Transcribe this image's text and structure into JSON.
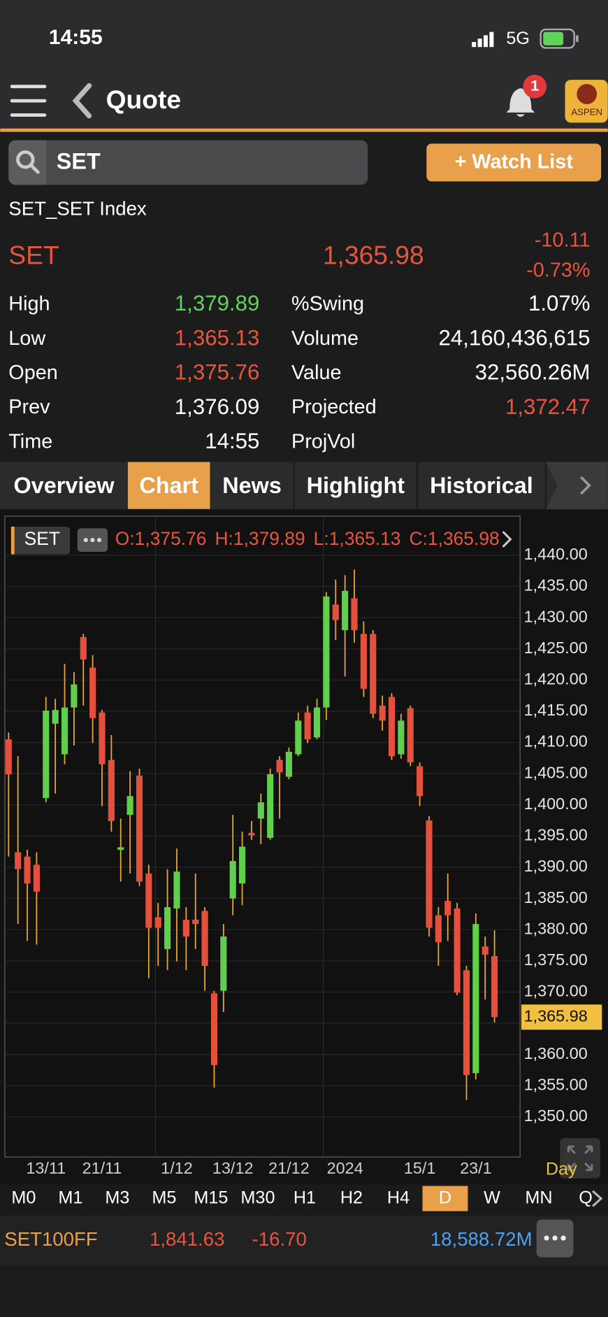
{
  "status_bar": {
    "time": "14:55",
    "network": "5G"
  },
  "header": {
    "title": "Quote",
    "badge": "1",
    "logo": "ASPEN"
  },
  "search": {
    "query": "SET",
    "button": "+ Watch List"
  },
  "quote": {
    "name": "SET_SET Index",
    "symbol": "SET",
    "last": "1,365.98",
    "change": "-10.11",
    "change_pct": "-0.73%",
    "left_fields": [
      {
        "label": "High",
        "value": "1,379.89",
        "color": "#5fd35a"
      },
      {
        "label": "Low",
        "value": "1,365.13",
        "color": "#e8553e"
      },
      {
        "label": "Open",
        "value": "1,375.76",
        "color": "#e8553e"
      },
      {
        "label": "Prev",
        "value": "1,376.09",
        "color": "#ffffff"
      },
      {
        "label": "Time",
        "value": "14:55",
        "color": "#ffffff"
      }
    ],
    "right_fields": [
      {
        "label": "%Swing",
        "value": "1.07%",
        "color": "#ffffff"
      },
      {
        "label": "Volume",
        "value": "24,160,436,615",
        "color": "#ffffff"
      },
      {
        "label": "Value",
        "value": "32,560.26M",
        "color": "#ffffff"
      },
      {
        "label": "Projected",
        "value": "1,372.47",
        "color": "#e8553e"
      },
      {
        "label": "ProjVol"
      }
    ]
  },
  "tabs": [
    "Overview",
    "Chart",
    "News",
    "Highlight",
    "Historical"
  ],
  "active_tab": 1,
  "chart_data": {
    "type": "candlestick",
    "symbol": "SET",
    "legend": [
      "O:1,375.76",
      "H:1,379.89",
      "L:1,365.13",
      "C:1,365.98"
    ],
    "interval": "Day",
    "categories": [
      null,
      null,
      null,
      null,
      "13/11",
      null,
      null,
      null,
      null,
      null,
      "21/11",
      null,
      null,
      null,
      null,
      null,
      null,
      null,
      "1/12",
      null,
      null,
      null,
      null,
      null,
      "13/12",
      null,
      null,
      null,
      null,
      null,
      "21/12",
      null,
      null,
      null,
      null,
      null,
      "2024",
      null,
      null,
      null,
      null,
      null,
      null,
      null,
      "15/1",
      null,
      null,
      null,
      null,
      null,
      "23/1",
      null,
      null
    ],
    "open": [
      1410.5,
      1392.4,
      1391.7,
      1390.4,
      1401.1,
      1413.0,
      1408.1,
      1415.6,
      1426.9,
      1422.0,
      1414.8,
      1407.2,
      1392.8,
      1398.4,
      1404.7,
      1389.0,
      1382.0,
      1376.9,
      1383.4,
      1381.6,
      1381.6,
      1383.0,
      1369.8,
      1370.2,
      1385.0,
      1387.4,
      1395.5,
      1397.8,
      1394.7,
      1407.2,
      1404.5,
      1408.1,
      1414.8,
      1410.8,
      1415.6,
      1432.1,
      1428.0,
      1433.1,
      1427.4,
      1427.4,
      1415.9,
      1417.3,
      1408.1,
      1415.5,
      1406.2,
      1397.5,
      1382.3,
      1384.6,
      1383.4,
      1373.5,
      1357.0,
      1377.3,
      1375.76
    ],
    "high": [
      1411.6,
      1407.8,
      1392.8,
      1392.4,
      1417.3,
      1417.0,
      1422.6,
      1421.3,
      1427.4,
      1424.0,
      1415.2,
      1411.2,
      1397.8,
      1405.4,
      1405.8,
      1390.4,
      1384.3,
      1389.7,
      1393.0,
      1383.6,
      1389.0,
      1383.6,
      1370.2,
      1380.9,
      1398.4,
      1395.7,
      1397.4,
      1401.8,
      1405.8,
      1407.8,
      1409.2,
      1414.8,
      1415.9,
      1417.0,
      1434.1,
      1436.1,
      1436.8,
      1437.7,
      1429.4,
      1428.0,
      1417.5,
      1417.9,
      1414.6,
      1415.9,
      1406.8,
      1398.2,
      1383.6,
      1389.0,
      1384.3,
      1374.2,
      1382.6,
      1378.9,
      1379.89
    ],
    "low": [
      1391.7,
      1380.9,
      1378.2,
      1377.6,
      1400.4,
      1401.8,
      1406.5,
      1409.5,
      1415.9,
      1409.9,
      1399.8,
      1395.7,
      1387.7,
      1389.0,
      1387.0,
      1372.2,
      1374.2,
      1373.5,
      1374.9,
      1373.5,
      1376.9,
      1370.2,
      1354.7,
      1366.8,
      1382.3,
      1383.9,
      1394.4,
      1393.7,
      1394.4,
      1397.8,
      1404.1,
      1407.8,
      1409.9,
      1410.5,
      1413.6,
      1426.4,
      1420.6,
      1426.0,
      1417.3,
      1413.9,
      1411.9,
      1407.2,
      1407.4,
      1406.2,
      1399.8,
      1378.9,
      1374.2,
      1378.2,
      1369.5,
      1352.7,
      1356.0,
      1368.8,
      1365.13
    ],
    "close": [
      1404.9,
      1389.7,
      1387.4,
      1386.1,
      1415.1,
      1415.2,
      1415.6,
      1419.3,
      1423.3,
      1413.9,
      1406.5,
      1397.4,
      1393.2,
      1401.4,
      1387.7,
      1380.3,
      1380.3,
      1383.6,
      1389.3,
      1378.9,
      1380.9,
      1374.2,
      1358.3,
      1378.9,
      1391.0,
      1393.3,
      1395.1,
      1400.4,
      1404.9,
      1405.2,
      1408.5,
      1413.5,
      1410.5,
      1415.6,
      1433.4,
      1429.6,
      1434.3,
      1428.0,
      1418.6,
      1414.6,
      1413.5,
      1407.8,
      1413.5,
      1406.8,
      1401.4,
      1380.3,
      1378.0,
      1382.3,
      1369.9,
      1356.7,
      1380.9,
      1376.0,
      1365.98
    ],
    "up_color": "#5fcf4c",
    "down_color": "#e4503c",
    "wick_color": "#e8a632",
    "ylim": [
      1343.5,
      1446.2
    ],
    "yticks": [
      {
        "value": 1350,
        "label": "1,350.00"
      },
      {
        "value": 1355,
        "label": "1,355.00"
      },
      {
        "value": 1360,
        "label": "1,360.00"
      },
      {
        "value": 1365,
        "label": "1,365.00"
      },
      {
        "value": 1370,
        "label": "1,370.00"
      },
      {
        "value": 1375,
        "label": "1,375.00"
      },
      {
        "value": 1380,
        "label": "1,380.00"
      },
      {
        "value": 1385,
        "label": "1,385.00"
      },
      {
        "value": 1390,
        "label": "1,390.00"
      },
      {
        "value": 1395,
        "label": "1,395.00"
      },
      {
        "value": 1400,
        "label": "1,400.00"
      },
      {
        "value": 1405,
        "label": "1,405.00"
      },
      {
        "value": 1410,
        "label": "1,410.00"
      },
      {
        "value": 1415,
        "label": "1,415.00"
      },
      {
        "value": 1420,
        "label": "1,420.00"
      },
      {
        "value": 1425,
        "label": "1,425.00"
      },
      {
        "value": 1430,
        "label": "1,430.00"
      },
      {
        "value": 1435,
        "label": "1,435.00"
      },
      {
        "value": 1440,
        "label": "1,440.00"
      }
    ],
    "last_value": 1365.98,
    "grid": true
  },
  "timeframes": [
    "M0",
    "M1",
    "M3",
    "M5",
    "M15",
    "M30",
    "H1",
    "H2",
    "H4",
    "D",
    "W",
    "MN",
    "Q"
  ],
  "active_timeframe": 9,
  "ticker": {
    "symbol": "SET100FF",
    "price": "1,841.63",
    "change": "-16.70",
    "value": "18,588.72M"
  }
}
